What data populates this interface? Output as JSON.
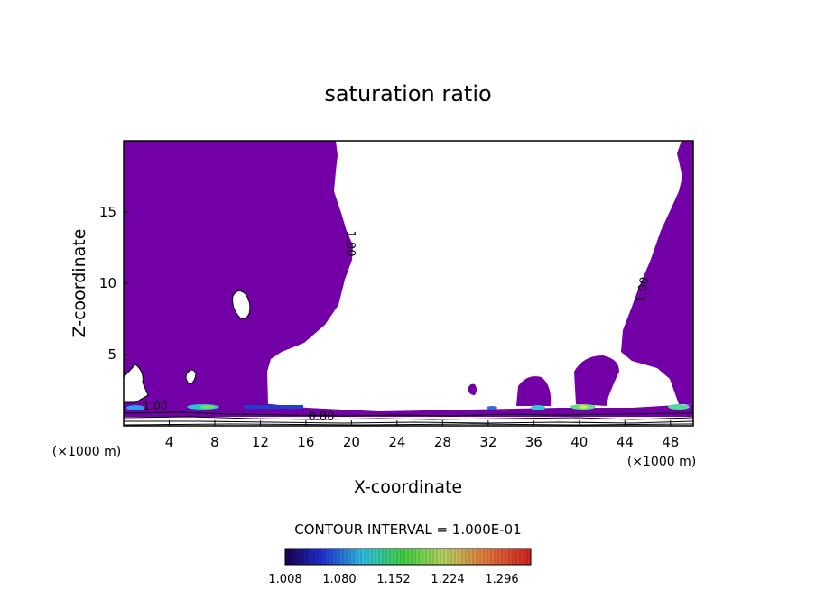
{
  "chart_data": {
    "type": "contour",
    "title": "saturation ratio",
    "xlabel": "X-coordinate",
    "ylabel": "Z-coordinate",
    "x_unit_note": "(×1000 m)",
    "z_unit_note": "(×1000 m)",
    "x_range": [
      0,
      50
    ],
    "z_range": [
      0,
      20
    ],
    "x_ticks": [
      "4",
      "8",
      "12",
      "16",
      "20",
      "24",
      "28",
      "32",
      "36",
      "40",
      "44",
      "48"
    ],
    "z_ticks": [
      "5",
      "10",
      "15"
    ],
    "contour_labels": [
      "1.00",
      "1.00",
      "0.80",
      "1.00"
    ],
    "contour_interval_text": "CONTOUR INTERVAL = 1.000E-01",
    "colorbar_ticks": [
      "1.008",
      "1.080",
      "1.152",
      "1.224",
      "1.296"
    ],
    "colorbar_range": [
      1.008,
      1.296
    ],
    "fill_color": "#7300a6"
  }
}
